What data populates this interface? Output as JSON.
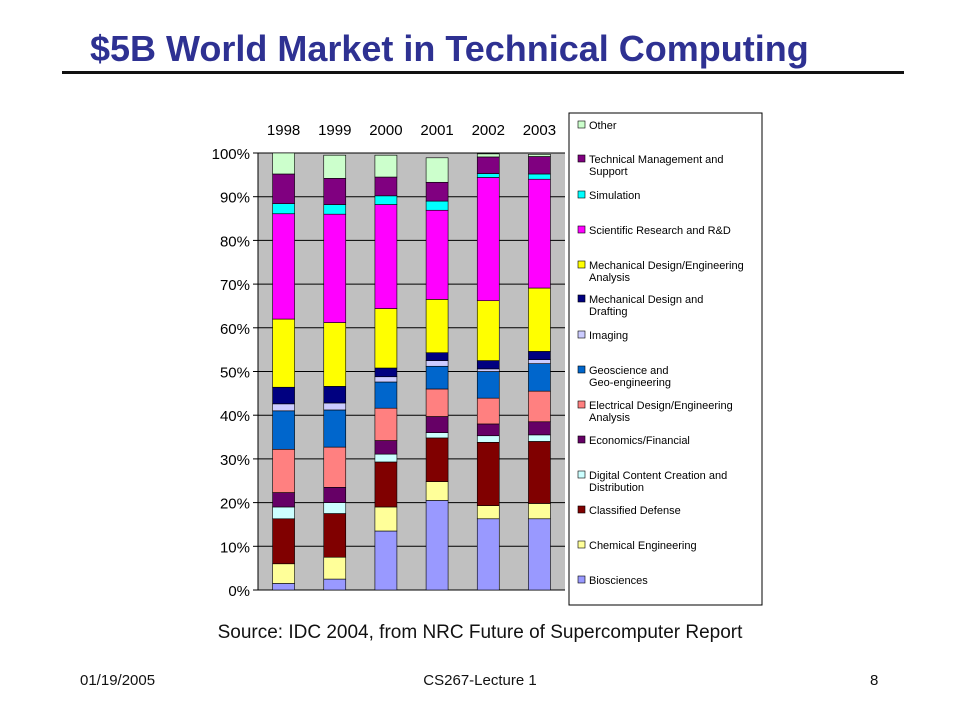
{
  "slide": {
    "title": "$5B World Market in Technical Computing",
    "source": "Source: IDC 2004, from NRC Future of Supercomputer Report",
    "footer_date": "01/19/2005",
    "footer_course": "CS267-Lecture 1",
    "footer_page": "8"
  },
  "chart_data": {
    "type": "bar",
    "stacked": true,
    "percent": true,
    "categories": [
      "1998",
      "1999",
      "2000",
      "2001",
      "2002",
      "2003"
    ],
    "yticks": [
      "0%",
      "10%",
      "20%",
      "30%",
      "40%",
      "50%",
      "60%",
      "70%",
      "80%",
      "90%",
      "100%"
    ],
    "ylim": [
      0,
      100
    ],
    "legend_position": "right",
    "series": [
      {
        "name": "Biosciences",
        "color": "#9999ff",
        "values": [
          1.5,
          2.5,
          13.5,
          20.5,
          16.3,
          16.3
        ]
      },
      {
        "name": "Chemical Engineering",
        "color": "#ffff99",
        "values": [
          4.5,
          5.0,
          5.5,
          4.3,
          3.0,
          3.5
        ]
      },
      {
        "name": "Classified Defense",
        "color": "#800000",
        "values": [
          10.3,
          10.0,
          10.3,
          10.0,
          14.5,
          14.2
        ]
      },
      {
        "name": "Digital Content Creation and Distribution",
        "color": "#ccffff",
        "values": [
          2.7,
          2.5,
          1.8,
          1.2,
          1.5,
          1.5
        ]
      },
      {
        "name": "Economics/Financial",
        "color": "#660066",
        "values": [
          3.3,
          3.5,
          3.1,
          3.7,
          2.7,
          3.0
        ]
      },
      {
        "name": "Electrical Design/Engineering Analysis",
        "color": "#ff8080",
        "values": [
          9.9,
          9.2,
          7.4,
          6.3,
          5.9,
          7.0
        ]
      },
      {
        "name": "Geoscience and Geo-engineering",
        "color": "#0066cc",
        "values": [
          8.8,
          8.5,
          6.0,
          5.2,
          6.1,
          6.3
        ]
      },
      {
        "name": "Imaging",
        "color": "#ccccff",
        "values": [
          1.6,
          1.6,
          1.2,
          1.3,
          0.6,
          0.9
        ]
      },
      {
        "name": "Mechanical Design and Drafting",
        "color": "#000080",
        "values": [
          3.8,
          3.8,
          2.0,
          1.8,
          1.9,
          1.9
        ]
      },
      {
        "name": "Mechanical Design/Engineering Analysis",
        "color": "#ffff00",
        "values": [
          15.6,
          14.6,
          13.6,
          12.2,
          13.7,
          14.5
        ]
      },
      {
        "name": "Scientific Research and R&D",
        "color": "#ff00ff",
        "values": [
          24.1,
          24.8,
          23.8,
          20.4,
          28.2,
          24.9
        ]
      },
      {
        "name": "Simulation",
        "color": "#00ffff",
        "values": [
          2.3,
          2.2,
          2.0,
          2.1,
          0.9,
          1.2
        ]
      },
      {
        "name": "Technical Management and Support",
        "color": "#800080",
        "values": [
          6.8,
          6.0,
          4.3,
          4.3,
          3.8,
          4.0
        ]
      },
      {
        "name": "Other",
        "color": "#ccffcc",
        "values": [
          4.8,
          5.3,
          5.0,
          5.6,
          0.7,
          0.5
        ]
      }
    ]
  }
}
